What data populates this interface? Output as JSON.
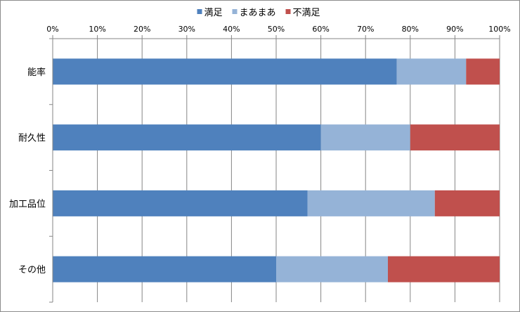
{
  "chart_data": {
    "type": "bar",
    "orientation": "horizontal",
    "stacked": "percent",
    "categories": [
      "能率",
      "耐久性",
      "加工品位",
      "その他"
    ],
    "series": [
      {
        "name": "満足",
        "color": "#4f81bd",
        "values": [
          77,
          60,
          57,
          50
        ]
      },
      {
        "name": "まあまあ",
        "color": "#95b3d7",
        "values": [
          15.5,
          20,
          28.5,
          25
        ]
      },
      {
        "name": "不満足",
        "color": "#c0504d",
        "values": [
          7.5,
          20,
          14.5,
          25
        ]
      }
    ],
    "xlim": [
      0,
      100
    ],
    "x_ticks": [
      "0%",
      "10%",
      "20%",
      "30%",
      "40%",
      "50%",
      "60%",
      "70%",
      "80%",
      "90%",
      "100%"
    ],
    "x_axis_position": "top",
    "grid": true,
    "legend_position": "top"
  }
}
